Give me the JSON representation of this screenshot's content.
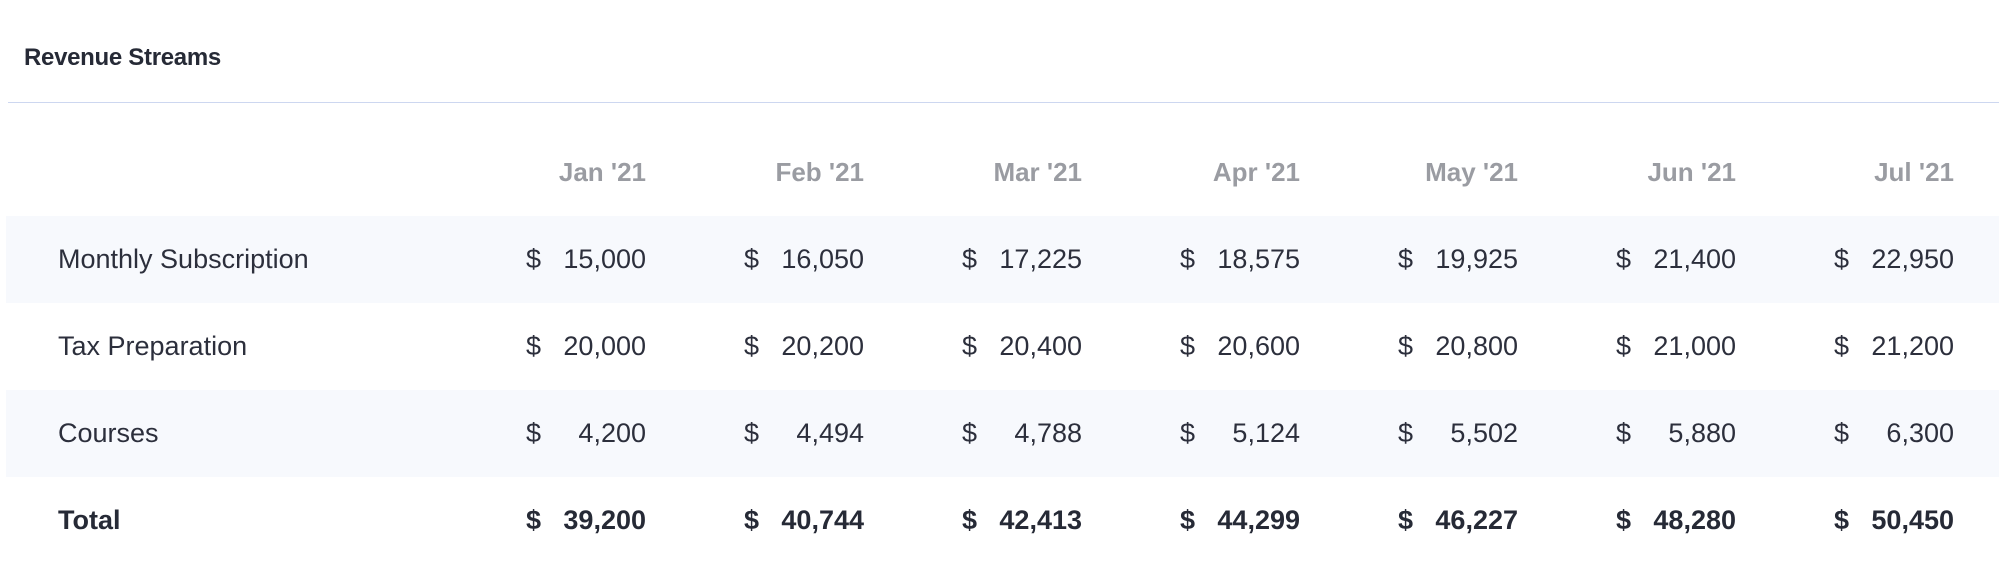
{
  "panel": {
    "title": "Revenue Streams"
  },
  "table": {
    "columns": [
      "Jan '21",
      "Feb '21",
      "Mar '21",
      "Apr '21",
      "May '21",
      "Jun '21",
      "Jul '21"
    ],
    "currency_symbol": "$",
    "rows": [
      {
        "label": "Monthly Subscription",
        "values": [
          "15,000",
          "16,050",
          "17,225",
          "18,575",
          "19,925",
          "21,400",
          "22,950"
        ]
      },
      {
        "label": "Tax Preparation",
        "values": [
          "20,000",
          "20,200",
          "20,400",
          "20,600",
          "20,800",
          "21,000",
          "21,200"
        ]
      },
      {
        "label": "Courses",
        "values": [
          "4,200",
          "4,494",
          "4,788",
          "5,124",
          "5,502",
          "5,880",
          "6,300"
        ]
      }
    ],
    "total": {
      "label": "Total",
      "values": [
        "39,200",
        "40,744",
        "42,413",
        "44,299",
        "46,227",
        "48,280",
        "50,450"
      ]
    }
  }
}
